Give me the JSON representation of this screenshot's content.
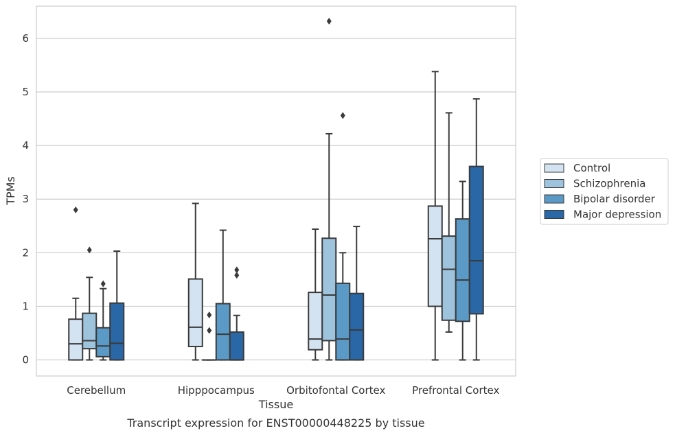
{
  "caption": "Transcript expression for ENST00000448225 by tissue",
  "chart_data": {
    "type": "box",
    "xlabel": "Tissue",
    "ylabel": "TPMs",
    "ylim": [
      -0.3,
      6.6
    ],
    "yticks": [
      0,
      1,
      2,
      3,
      4,
      5,
      6
    ],
    "grid": "horizontal",
    "legend_position": "right",
    "categories": [
      "Cerebellum",
      "Hipppocampus",
      "Orbitofontal Cortex",
      "Prefrontal Cortex"
    ],
    "series": [
      {
        "name": "Control",
        "color": "#d4e3f1",
        "boxes": [
          {
            "whislo": 0.0,
            "q1": 0.0,
            "med": 0.3,
            "q3": 0.76,
            "whishi": 1.15,
            "fliers": [
              2.8
            ]
          },
          {
            "whislo": 0.0,
            "q1": 0.25,
            "med": 0.61,
            "q3": 1.51,
            "whishi": 2.92,
            "fliers": []
          },
          {
            "whislo": 0.0,
            "q1": 0.19,
            "med": 0.39,
            "q3": 1.26,
            "whishi": 2.44,
            "fliers": []
          },
          {
            "whislo": 0.0,
            "q1": 1.0,
            "med": 2.26,
            "q3": 2.87,
            "whishi": 5.38,
            "fliers": []
          }
        ]
      },
      {
        "name": "Schizophrenia",
        "color": "#9dc3dd",
        "boxes": [
          {
            "whislo": 0.0,
            "q1": 0.21,
            "med": 0.36,
            "q3": 0.87,
            "whishi": 1.54,
            "fliers": [
              2.05
            ]
          },
          {
            "whislo": 0.0,
            "q1": 0.0,
            "med": 0.0,
            "q3": 0.0,
            "whishi": 0.0,
            "fliers": [
              0.55,
              0.84
            ]
          },
          {
            "whislo": 0.0,
            "q1": 0.36,
            "med": 1.21,
            "q3": 2.27,
            "whishi": 4.22,
            "fliers": [
              6.32
            ]
          },
          {
            "whislo": 0.52,
            "q1": 0.74,
            "med": 1.69,
            "q3": 2.31,
            "whishi": 4.61,
            "fliers": []
          }
        ]
      },
      {
        "name": "Bipolar disorder",
        "color": "#5b9ac6",
        "boxes": [
          {
            "whislo": 0.0,
            "q1": 0.06,
            "med": 0.26,
            "q3": 0.6,
            "whishi": 1.33,
            "fliers": [
              1.42
            ]
          },
          {
            "whislo": 0.0,
            "q1": 0.0,
            "med": 0.48,
            "q3": 1.05,
            "whishi": 2.42,
            "fliers": []
          },
          {
            "whislo": 0.0,
            "q1": 0.0,
            "med": 0.39,
            "q3": 1.43,
            "whishi": 2.0,
            "fliers": [
              4.56
            ]
          },
          {
            "whislo": 0.0,
            "q1": 0.72,
            "med": 1.49,
            "q3": 2.63,
            "whishi": 3.33,
            "fliers": []
          }
        ]
      },
      {
        "name": "Major depression",
        "color": "#2a67a6",
        "boxes": [
          {
            "whislo": 0.0,
            "q1": 0.0,
            "med": 0.31,
            "q3": 1.06,
            "whishi": 2.03,
            "fliers": []
          },
          {
            "whislo": 0.0,
            "q1": 0.0,
            "med": 0.0,
            "q3": 0.52,
            "whishi": 0.83,
            "fliers": [
              1.58,
              1.68
            ]
          },
          {
            "whislo": 0.0,
            "q1": 0.0,
            "med": 0.56,
            "q3": 1.24,
            "whishi": 2.49,
            "fliers": []
          },
          {
            "whislo": 0.0,
            "q1": 0.86,
            "med": 1.85,
            "q3": 3.61,
            "whishi": 4.87,
            "fliers": []
          }
        ]
      }
    ]
  }
}
